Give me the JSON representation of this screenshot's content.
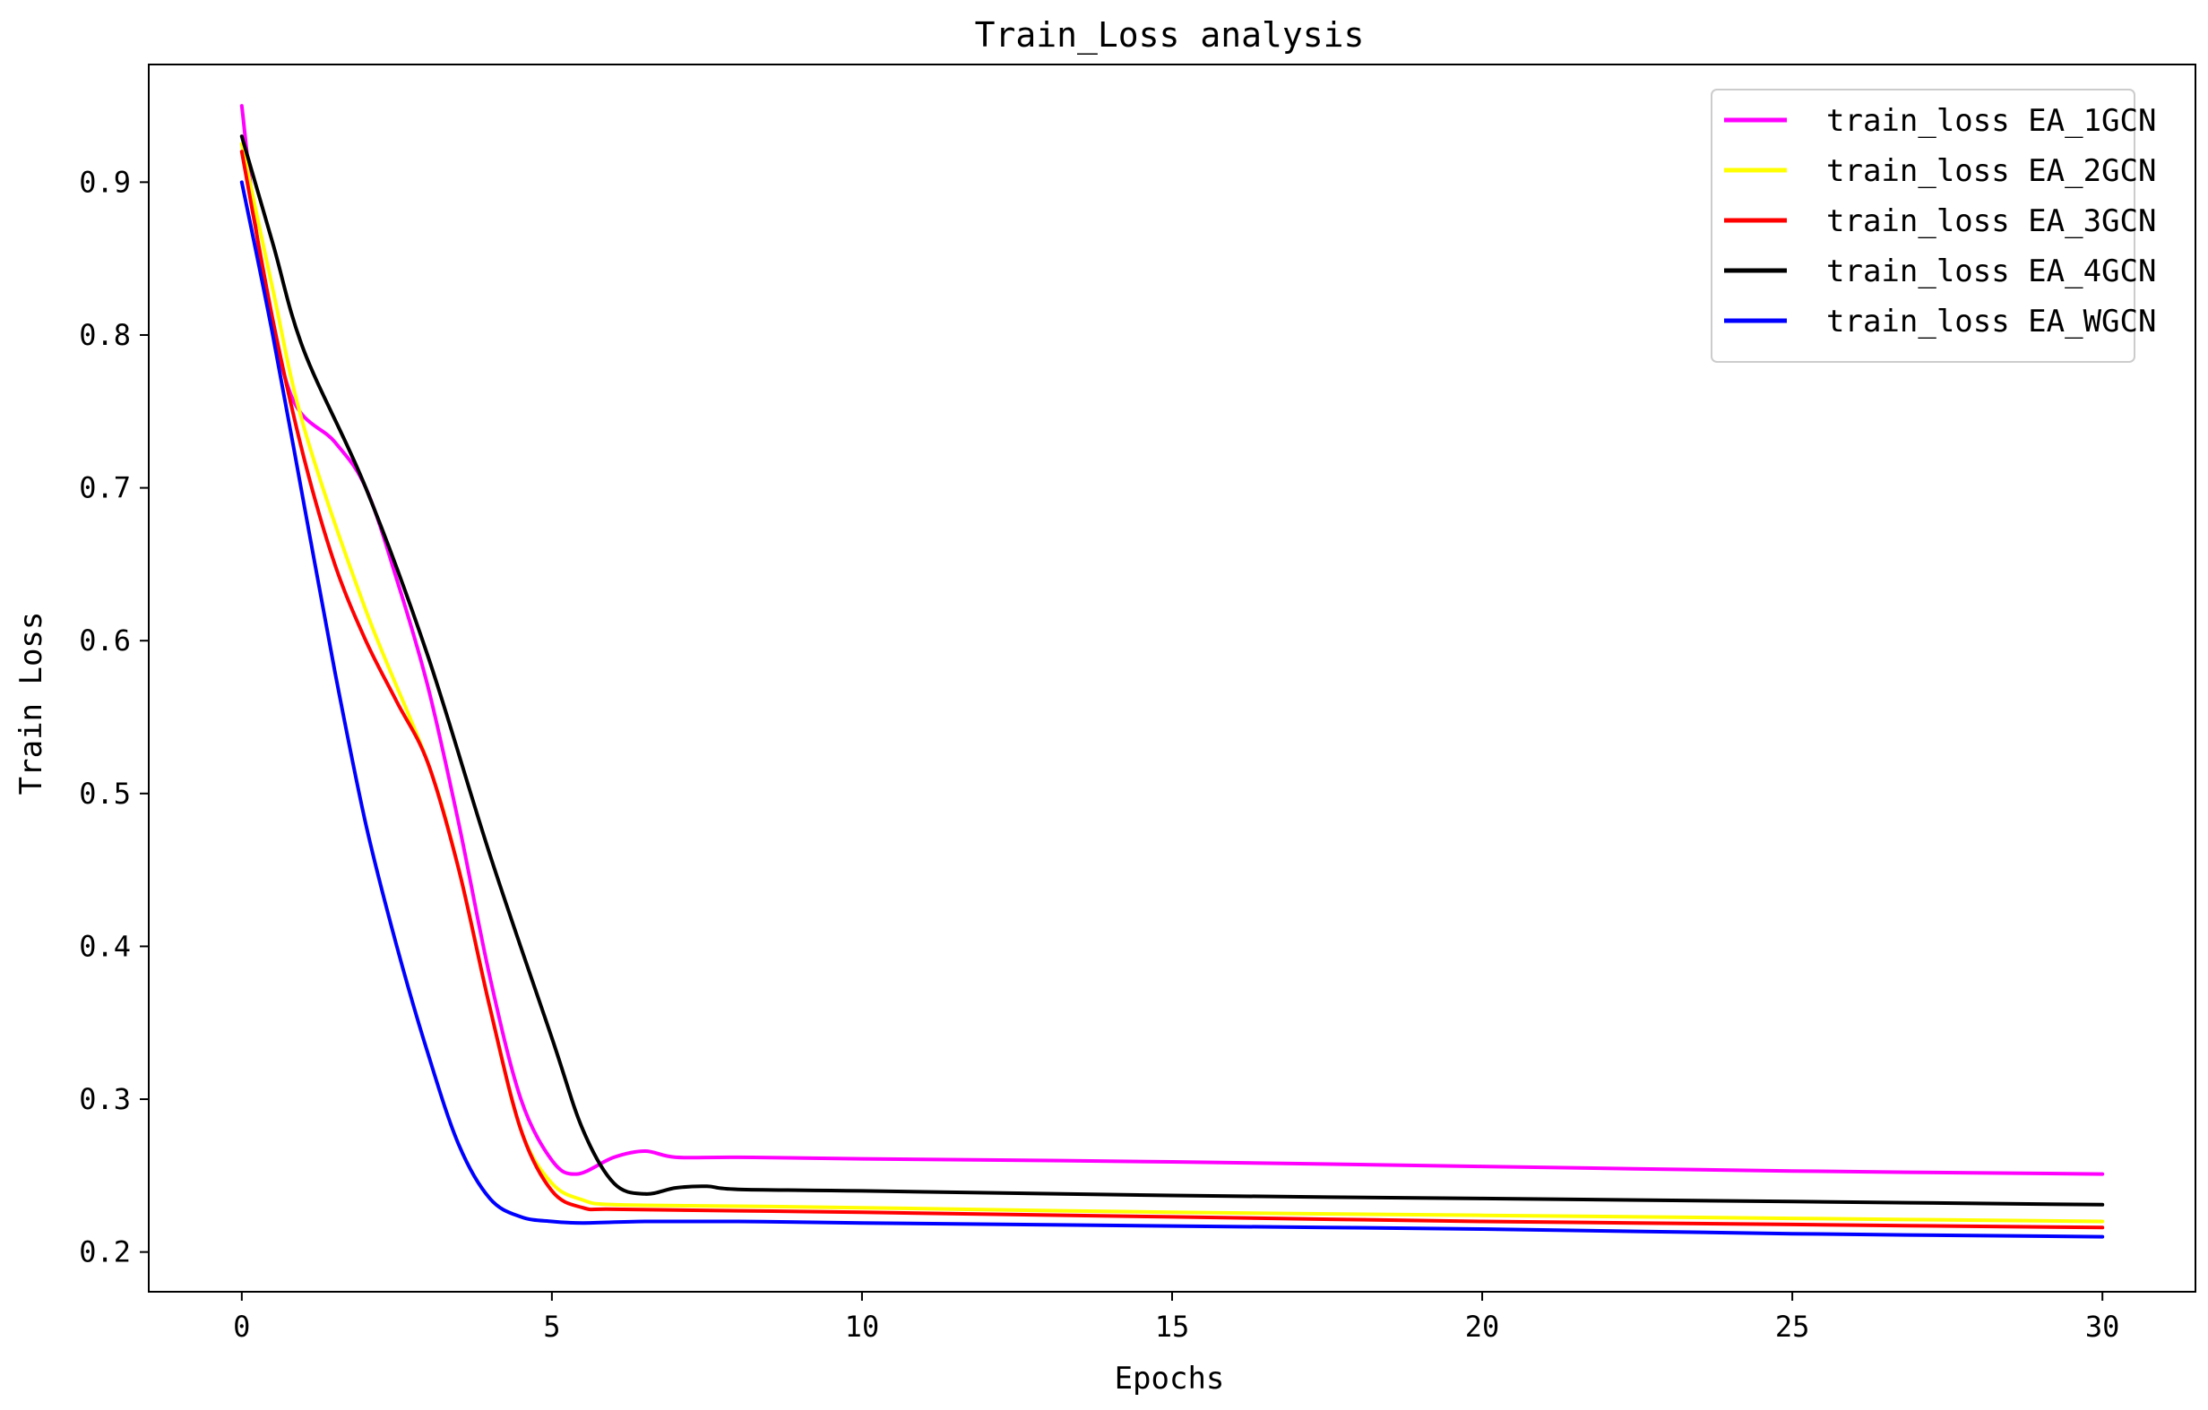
{
  "chart_data": {
    "type": "line",
    "title": "Train_Loss analysis",
    "xlabel": "Epochs",
    "ylabel": "Train Loss",
    "xlim": [
      -1.5,
      31.5
    ],
    "ylim": [
      0.174,
      0.977
    ],
    "xticks": [
      0,
      5,
      10,
      15,
      20,
      25,
      30
    ],
    "yticks": [
      0.2,
      0.3,
      0.4,
      0.5,
      0.6,
      0.7,
      0.8,
      0.9
    ],
    "ytick_labels": [
      "0.2",
      "0.3",
      "0.4",
      "0.5",
      "0.6",
      "0.7",
      "0.8",
      "0.9"
    ],
    "grid": false,
    "legend_position": "top-right",
    "series": [
      {
        "name": "train_loss EA_1GCN",
        "color": "#ff00ff",
        "points": [
          [
            0,
            0.95
          ],
          [
            0.3,
            0.85
          ],
          [
            0.8,
            0.76
          ],
          [
            1.5,
            0.73
          ],
          [
            2,
            0.7
          ],
          [
            2.5,
            0.64
          ],
          [
            3,
            0.57
          ],
          [
            3.5,
            0.48
          ],
          [
            4,
            0.38
          ],
          [
            4.5,
            0.3
          ],
          [
            5,
            0.26
          ],
          [
            5.4,
            0.251
          ],
          [
            6,
            0.262
          ],
          [
            6.5,
            0.266
          ],
          [
            7,
            0.262
          ],
          [
            8,
            0.262
          ],
          [
            10,
            0.261
          ],
          [
            15,
            0.259
          ],
          [
            20,
            0.256
          ],
          [
            25,
            0.253
          ],
          [
            30,
            0.251
          ]
        ]
      },
      {
        "name": "train_loss EA_2GCN",
        "color": "#ffff00",
        "points": [
          [
            0,
            0.925
          ],
          [
            0.5,
            0.83
          ],
          [
            1,
            0.74
          ],
          [
            2,
            0.62
          ],
          [
            3,
            0.52
          ],
          [
            3.5,
            0.45
          ],
          [
            4,
            0.36
          ],
          [
            4.5,
            0.28
          ],
          [
            5,
            0.245
          ],
          [
            5.5,
            0.234
          ],
          [
            6,
            0.231
          ],
          [
            8,
            0.23
          ],
          [
            10,
            0.229
          ],
          [
            15,
            0.226
          ],
          [
            20,
            0.224
          ],
          [
            25,
            0.222
          ],
          [
            30,
            0.22
          ]
        ]
      },
      {
        "name": "train_loss EA_3GCN",
        "color": "#ff0000",
        "points": [
          [
            0,
            0.92
          ],
          [
            0.5,
            0.81
          ],
          [
            1,
            0.72
          ],
          [
            1.5,
            0.65
          ],
          [
            2,
            0.6
          ],
          [
            2.5,
            0.56
          ],
          [
            3,
            0.52
          ],
          [
            3.5,
            0.45
          ],
          [
            4,
            0.36
          ],
          [
            4.5,
            0.28
          ],
          [
            5,
            0.24
          ],
          [
            5.5,
            0.229
          ],
          [
            6,
            0.228
          ],
          [
            8,
            0.227
          ],
          [
            10,
            0.226
          ],
          [
            15,
            0.223
          ],
          [
            20,
            0.22
          ],
          [
            25,
            0.218
          ],
          [
            30,
            0.216
          ]
        ]
      },
      {
        "name": "train_loss EA_4GCN",
        "color": "#000000",
        "points": [
          [
            0,
            0.93
          ],
          [
            0.5,
            0.86
          ],
          [
            1,
            0.79
          ],
          [
            2,
            0.7
          ],
          [
            3,
            0.59
          ],
          [
            4,
            0.46
          ],
          [
            5,
            0.34
          ],
          [
            5.5,
            0.28
          ],
          [
            6,
            0.245
          ],
          [
            6.5,
            0.238
          ],
          [
            7,
            0.242
          ],
          [
            7.5,
            0.243
          ],
          [
            8,
            0.241
          ],
          [
            10,
            0.24
          ],
          [
            15,
            0.237
          ],
          [
            20,
            0.235
          ],
          [
            25,
            0.233
          ],
          [
            30,
            0.231
          ]
        ]
      },
      {
        "name": "train_loss EA_WGCN",
        "color": "#0000ff",
        "points": [
          [
            0,
            0.9
          ],
          [
            0.5,
            0.8
          ],
          [
            1,
            0.69
          ],
          [
            1.5,
            0.58
          ],
          [
            2,
            0.48
          ],
          [
            2.5,
            0.4
          ],
          [
            3,
            0.33
          ],
          [
            3.5,
            0.27
          ],
          [
            4,
            0.235
          ],
          [
            4.5,
            0.223
          ],
          [
            5,
            0.22
          ],
          [
            5.5,
            0.219
          ],
          [
            6.5,
            0.22
          ],
          [
            8,
            0.22
          ],
          [
            10,
            0.219
          ],
          [
            15,
            0.217
          ],
          [
            20,
            0.215
          ],
          [
            25,
            0.212
          ],
          [
            30,
            0.21
          ]
        ]
      }
    ]
  }
}
